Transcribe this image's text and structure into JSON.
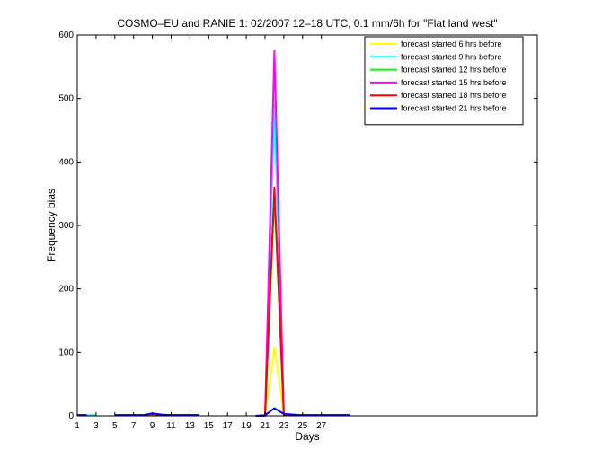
{
  "chart_data": {
    "type": "line",
    "title": "COSMO–EU and RANIE 1: 02/2007 12–18 UTC, 0.1 mm/6h for \"Flat land west\"",
    "xlabel": "Days",
    "ylabel": "Frequency bias",
    "xlim": [
      1,
      50
    ],
    "ylim": [
      0,
      600
    ],
    "xticks": [
      1,
      3,
      5,
      7,
      9,
      11,
      13,
      15,
      17,
      19,
      21,
      23,
      25,
      27
    ],
    "yticks": [
      0,
      100,
      200,
      300,
      400,
      500,
      600
    ],
    "legend_position": "top-right",
    "grid": false,
    "x": [
      1,
      2,
      3,
      4,
      5,
      6,
      7,
      8,
      9,
      10,
      11,
      12,
      13,
      14,
      15,
      16,
      17,
      18,
      19,
      20,
      21,
      22,
      23,
      24,
      25,
      26,
      27,
      28,
      29,
      30
    ],
    "series": [
      {
        "name": "forecast started 6 hrs before",
        "color": "#ffff00",
        "values": [
          1,
          1,
          null,
          null,
          1,
          1,
          1,
          1,
          2,
          1,
          1,
          1,
          1,
          1,
          null,
          null,
          null,
          null,
          null,
          0,
          0,
          108,
          2,
          1,
          1,
          1,
          1,
          1,
          1,
          1
        ]
      },
      {
        "name": "forecast started 9 hrs before",
        "color": "#00ffff",
        "values": [
          1,
          1,
          1,
          null,
          1,
          1,
          1,
          1,
          3,
          1,
          1,
          1,
          1,
          1,
          null,
          null,
          null,
          null,
          null,
          0,
          0,
          490,
          2,
          1,
          1,
          1,
          1,
          1,
          1,
          1
        ]
      },
      {
        "name": "forecast started 12 hrs before",
        "color": "#00ff00",
        "values": [
          1,
          1,
          null,
          null,
          1,
          1,
          1,
          1,
          3,
          1,
          1,
          1,
          1,
          1,
          null,
          null,
          null,
          null,
          null,
          0,
          0,
          350,
          2,
          1,
          1,
          1,
          1,
          1,
          1,
          1
        ]
      },
      {
        "name": "forecast started 15 hrs before",
        "color": "#ff00ff",
        "values": [
          1,
          1,
          null,
          null,
          1,
          1,
          1,
          1,
          3,
          1,
          1,
          1,
          1,
          1,
          null,
          null,
          null,
          null,
          null,
          0,
          0,
          575,
          2,
          1,
          1,
          1,
          1,
          1,
          1,
          1
        ]
      },
      {
        "name": "forecast started 18 hrs before",
        "color": "#ff0000",
        "values": [
          1,
          1,
          null,
          null,
          1,
          1,
          1,
          1,
          3,
          1,
          1,
          1,
          1,
          1,
          null,
          null,
          null,
          null,
          null,
          0,
          0,
          360,
          2,
          1,
          1,
          1,
          1,
          1,
          1,
          1
        ]
      },
      {
        "name": "forecast started 21 hrs before",
        "color": "#0000ff",
        "values": [
          1,
          1,
          null,
          null,
          1,
          1,
          1,
          1,
          4,
          2,
          1,
          1,
          1,
          1,
          null,
          null,
          null,
          null,
          null,
          0,
          1,
          12,
          3,
          2,
          1,
          1,
          1,
          1,
          1,
          1
        ]
      }
    ]
  }
}
